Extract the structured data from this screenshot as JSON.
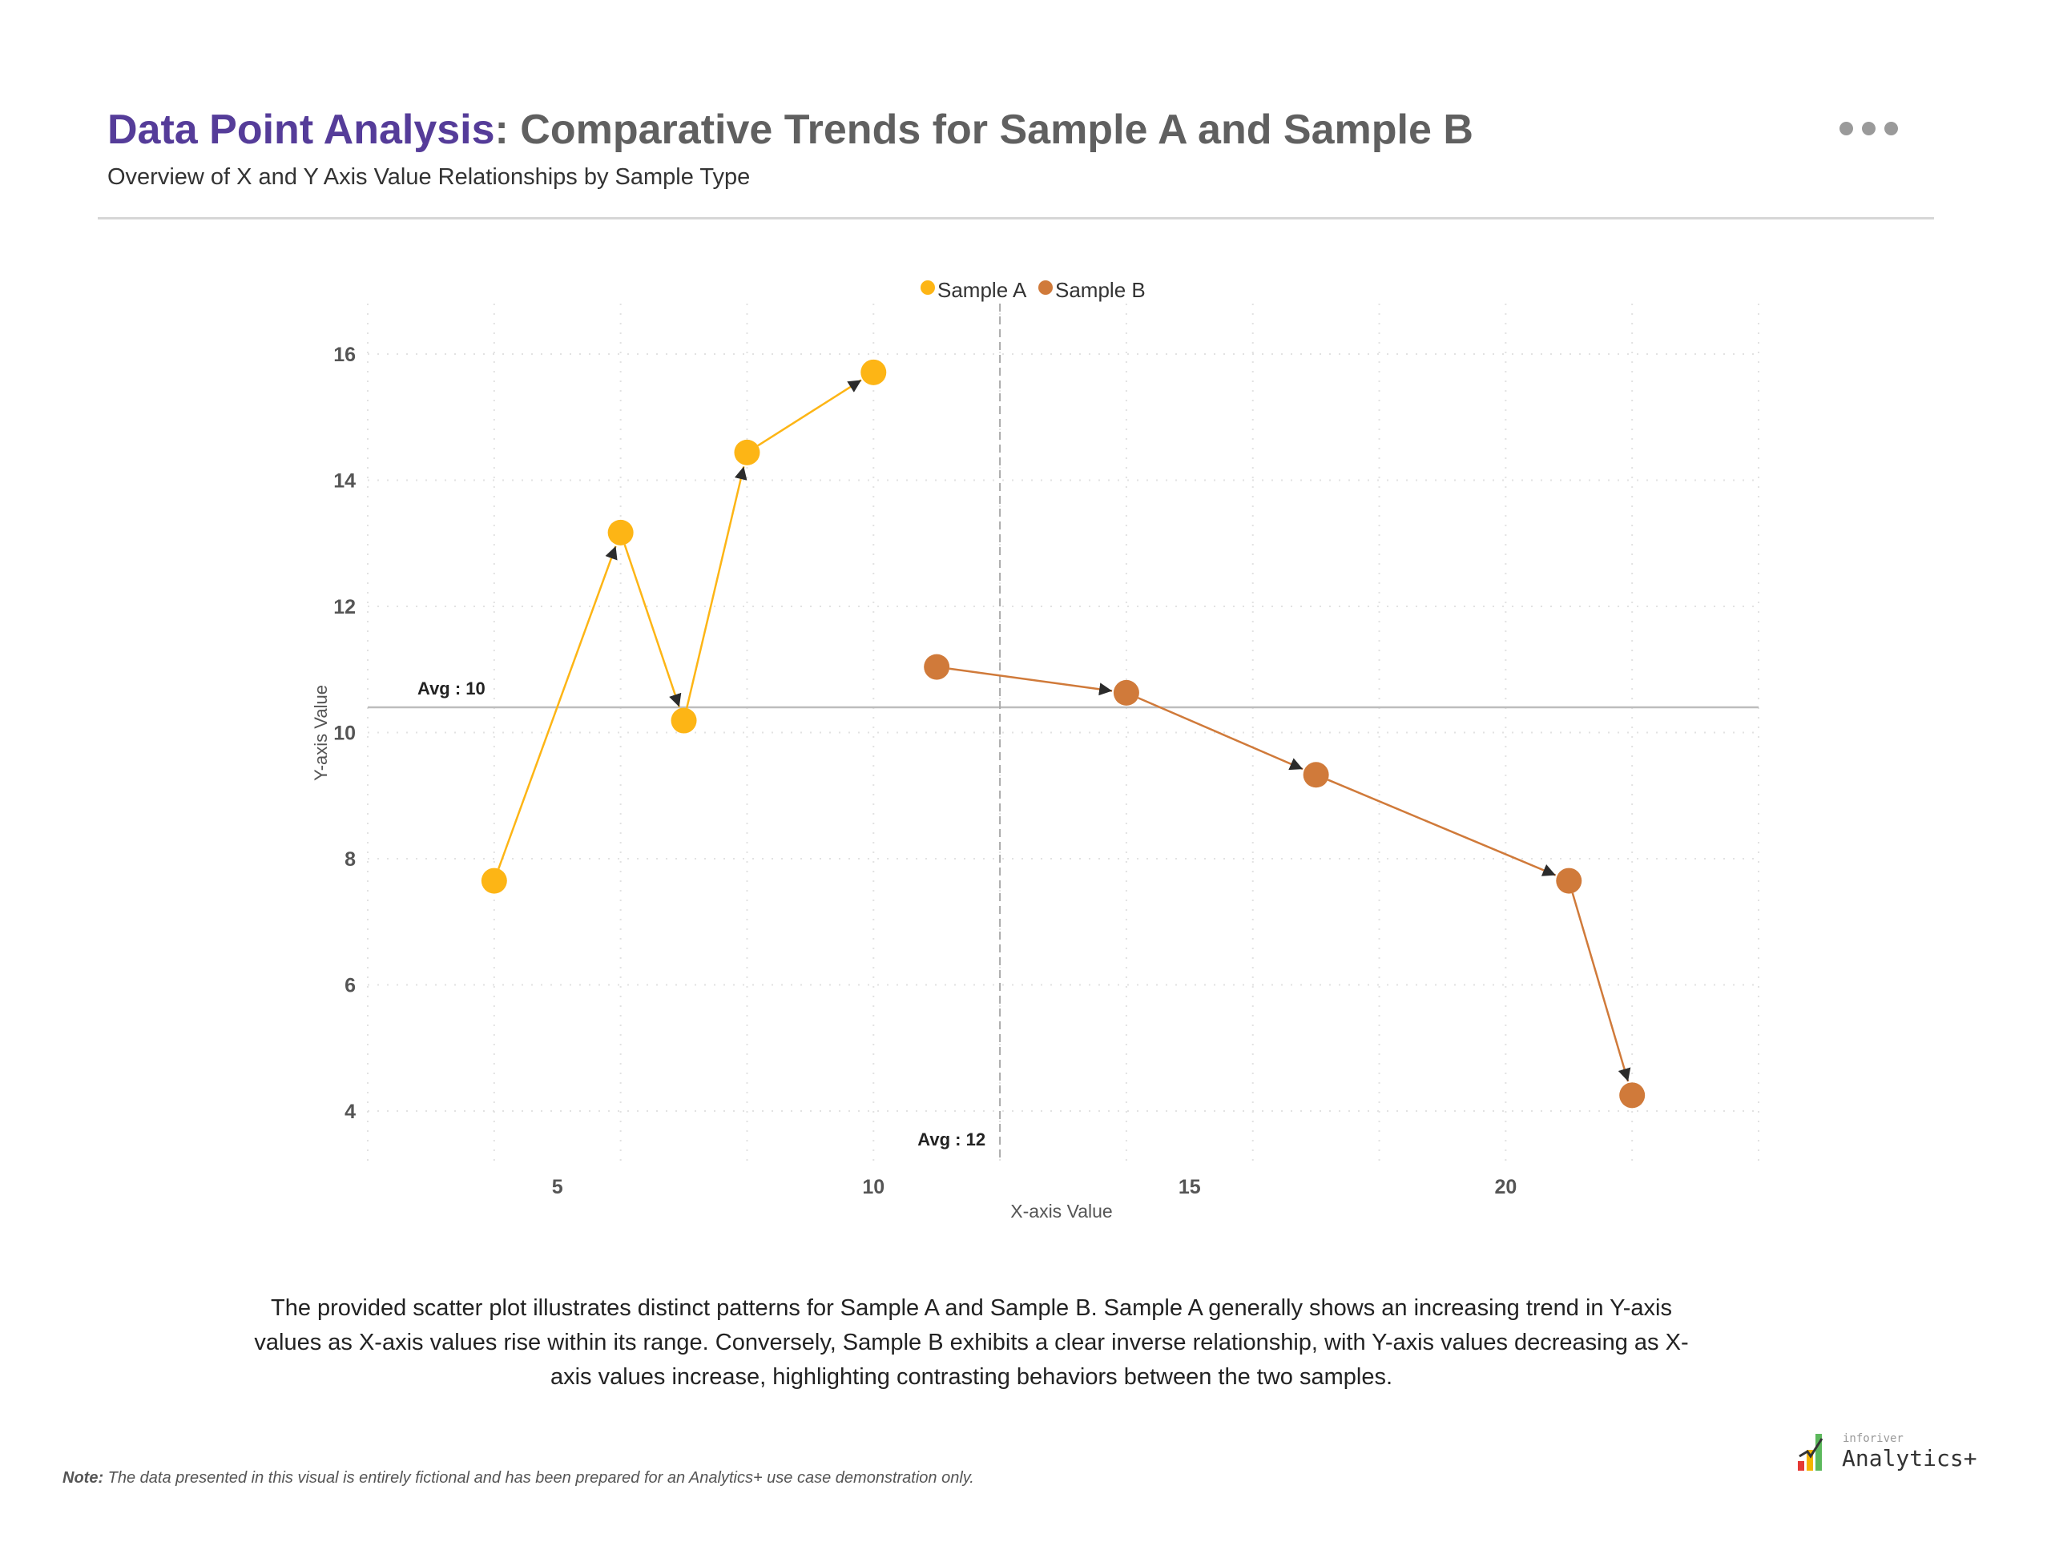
{
  "header": {
    "title_accent": "Data Point Analysis",
    "title_rest": ": Comparative Trends for Sample A and Sample B",
    "subtitle": "Overview of X and Y Axis Value Relationships by Sample Type",
    "more_icon": "ellipsis-icon"
  },
  "colors": {
    "title_accent": "#553c99",
    "sample_a": "#FDB515",
    "sample_b": "#D07A3A",
    "arrow": "#2b2b2b"
  },
  "chart_data": {
    "type": "scatter",
    "xlabel": "X-axis Value",
    "ylabel": "Y-axis Value",
    "xlim": [
      2,
      24
    ],
    "ylim": [
      3.2,
      16.8
    ],
    "x_ticks": [
      5,
      10,
      15,
      20
    ],
    "y_ticks": [
      4,
      6,
      8,
      10,
      12,
      14,
      16
    ],
    "grid": true,
    "legend_position": "top-center",
    "connected_with_arrows": true,
    "series": [
      {
        "name": "Sample A",
        "color": "#FDB515",
        "points": [
          [
            4,
            7.65
          ],
          [
            6,
            13.17
          ],
          [
            7,
            10.19
          ],
          [
            8,
            14.44
          ],
          [
            10,
            15.71
          ]
        ]
      },
      {
        "name": "Sample B",
        "color": "#D07A3A",
        "points": [
          [
            11,
            11.04
          ],
          [
            14,
            10.63
          ],
          [
            17,
            9.33
          ],
          [
            21,
            7.65
          ],
          [
            22,
            4.25
          ]
        ]
      }
    ],
    "reference_lines": [
      {
        "axis": "y",
        "value": 10.4,
        "label": "Avg : 10"
      },
      {
        "axis": "x",
        "value": 12,
        "label": "Avg : 12"
      }
    ]
  },
  "description": "The provided scatter plot illustrates distinct patterns for Sample A and Sample B. Sample A generally shows an increasing trend in Y-axis values as X-axis values rise within its range. Conversely, Sample B exhibits a clear inverse relationship, with Y-axis values decreasing as X-axis values increase, highlighting contrasting behaviors between the two samples.",
  "footer": {
    "note_label": "Note:",
    "note_text": " The data presented in this visual is entirely fictional and has been prepared for an Analytics+ use case demonstration only.",
    "logo_small": "inforiver",
    "logo_big": "Analytics+"
  }
}
